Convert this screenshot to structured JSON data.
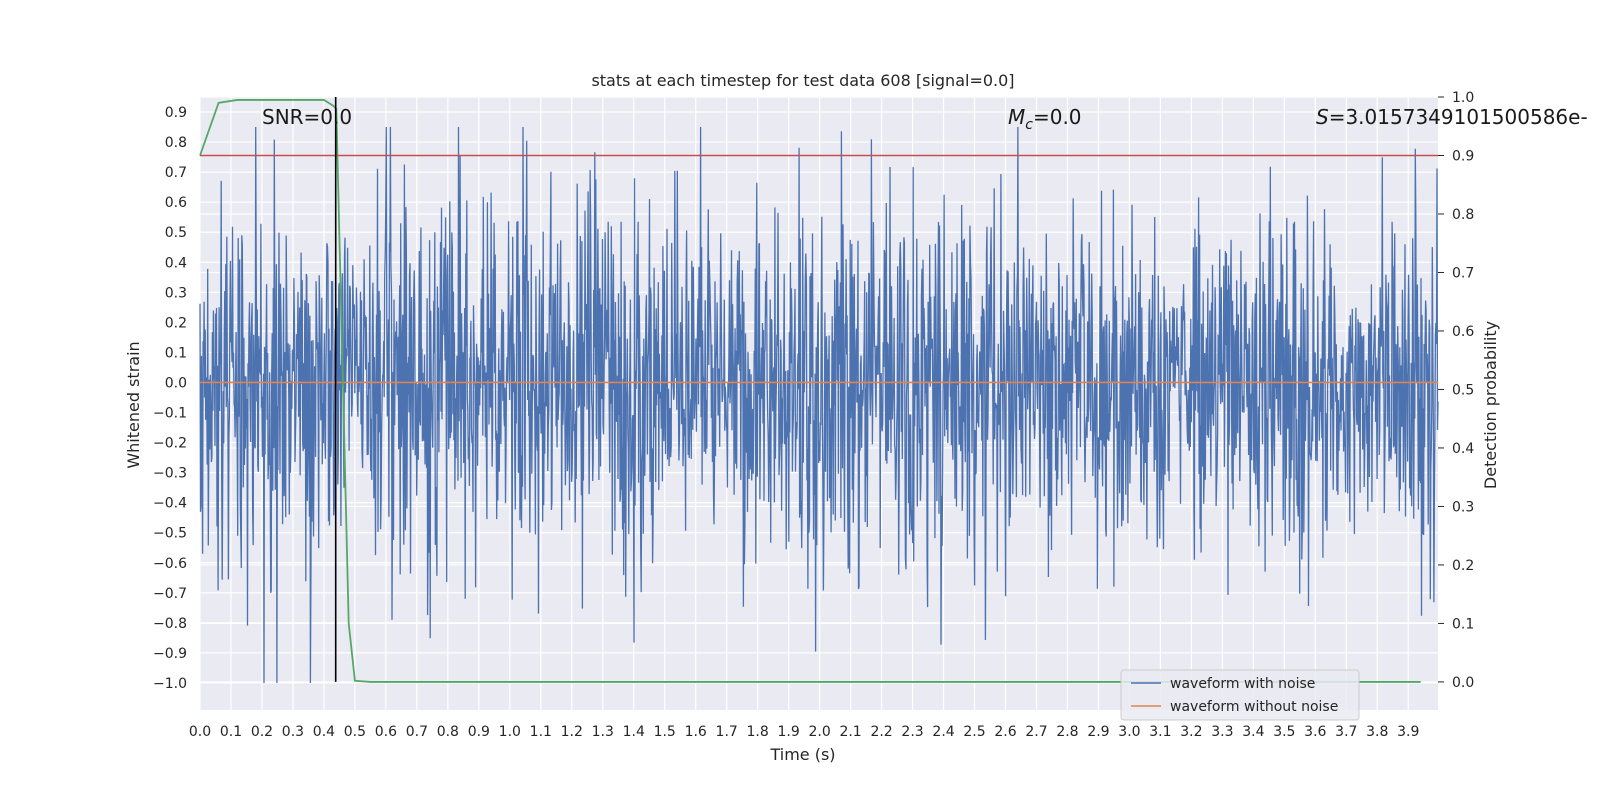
{
  "chart_data": {
    "type": "line",
    "title": "stats at each timestep for test data 608 [signal=0.0]",
    "xlabel": "Time (s)",
    "ylabel": "Whitened strain",
    "y2label": "Detection probability",
    "xlim": [
      0.0,
      3.996
    ],
    "ylim": [
      -1.09,
      0.95
    ],
    "y2lim": [
      -0.048,
      1.0
    ],
    "x_ticks": [
      0.0,
      0.1,
      0.2,
      0.3,
      0.4,
      0.5,
      0.6,
      0.7,
      0.8,
      0.9,
      1.0,
      1.1,
      1.2,
      1.3,
      1.4,
      1.5,
      1.6,
      1.7,
      1.8,
      1.9,
      2.0,
      2.1,
      2.2,
      2.3,
      2.4,
      2.5,
      2.6,
      2.7,
      2.8,
      2.9,
      3.0,
      3.1,
      3.2,
      3.3,
      3.4,
      3.5,
      3.6,
      3.7,
      3.8,
      3.9
    ],
    "x_tick_labels": [
      "0.0",
      "0.1",
      "0.2",
      "0.3",
      "0.4",
      "0.5",
      "0.6",
      "0.7",
      "0.8",
      "0.9",
      "1.0",
      "1.1",
      "1.2",
      "1.3",
      "1.4",
      "1.5",
      "1.6",
      "1.7",
      "1.8",
      "1.9",
      "2.0",
      "2.1",
      "2.2",
      "2.3",
      "2.4",
      "2.5",
      "2.6",
      "2.7",
      "2.8",
      "2.9",
      "3.0",
      "3.1",
      "3.2",
      "3.3",
      "3.4",
      "3.5",
      "3.6",
      "3.7",
      "3.8",
      "3.9"
    ],
    "y_ticks": [
      0.9,
      0.8,
      0.7,
      0.6,
      0.5,
      0.4,
      0.3,
      0.2,
      0.1,
      0.0,
      -0.1,
      -0.2,
      -0.3,
      -0.4,
      -0.5,
      -0.6,
      -0.7,
      -0.8,
      -0.9,
      -1.0
    ],
    "y_tick_labels": [
      "0.9",
      "0.8",
      "0.7",
      "0.6",
      "0.5",
      "0.4",
      "0.3",
      "0.2",
      "0.1",
      "0.0",
      "−0.1",
      "−0.2",
      "−0.3",
      "−0.4",
      "−0.5",
      "−0.6",
      "−0.7",
      "−0.8",
      "−0.9",
      "−1.0"
    ],
    "y2_ticks": [
      1.0,
      0.9,
      0.8,
      0.7,
      0.6,
      0.5,
      0.4,
      0.3,
      0.2,
      0.1,
      0.0
    ],
    "y2_tick_labels": [
      "1.0",
      "0.9",
      "0.8",
      "0.7",
      "0.6",
      "0.5",
      "0.4",
      "0.3",
      "0.2",
      "0.1",
      "0.0"
    ],
    "series": [
      {
        "name": "waveform with noise",
        "axis": "left",
        "color": "#4c72b0",
        "style": "dense noise, roughly ±0.5 with peaks near 0.85 and −1.0",
        "random_seed": 608,
        "n_samples": 2400,
        "approx_std": 0.27,
        "approx_range": [
          -1.0,
          0.85
        ]
      },
      {
        "name": "waveform without noise",
        "axis": "left",
        "color": "#dd8452",
        "x": [
          0.0,
          3.996
        ],
        "values": [
          0.0,
          0.0
        ]
      },
      {
        "name": "detection probability",
        "axis": "right",
        "color": "#55a868",
        "x": [
          0.0,
          0.06,
          0.12,
          0.2,
          0.3,
          0.4,
          0.43,
          0.44,
          0.48,
          0.5,
          0.55,
          0.6,
          1.0,
          2.0,
          3.0,
          3.94
        ],
        "values": [
          0.9,
          0.99,
          0.995,
          0.995,
          0.995,
          0.995,
          0.985,
          0.98,
          0.1,
          0.002,
          0.0,
          0.0,
          0.0,
          0.0,
          0.0,
          0.0
        ]
      }
    ],
    "threshold_line": {
      "axis": "right",
      "value": 0.9,
      "color": "#c44e52"
    },
    "vertical_marker": {
      "x": 0.438,
      "color": "#000000"
    },
    "annotations": {
      "snr": "SNR=0.0",
      "mc_symbol": "M",
      "mc_sub": "c",
      "mc_value": "=0.0",
      "s_symbol": "S",
      "s_value": "=3.0157349101500586e-"
    },
    "legend": {
      "placement": "lower-right",
      "entries": [
        {
          "label": "waveform with noise",
          "color": "#4c72b0"
        },
        {
          "label": "waveform without noise",
          "color": "#dd8452"
        }
      ]
    },
    "grid": true,
    "style": {
      "plot_background": "#eaeaf2",
      "grid_color": "#ffffff"
    }
  }
}
